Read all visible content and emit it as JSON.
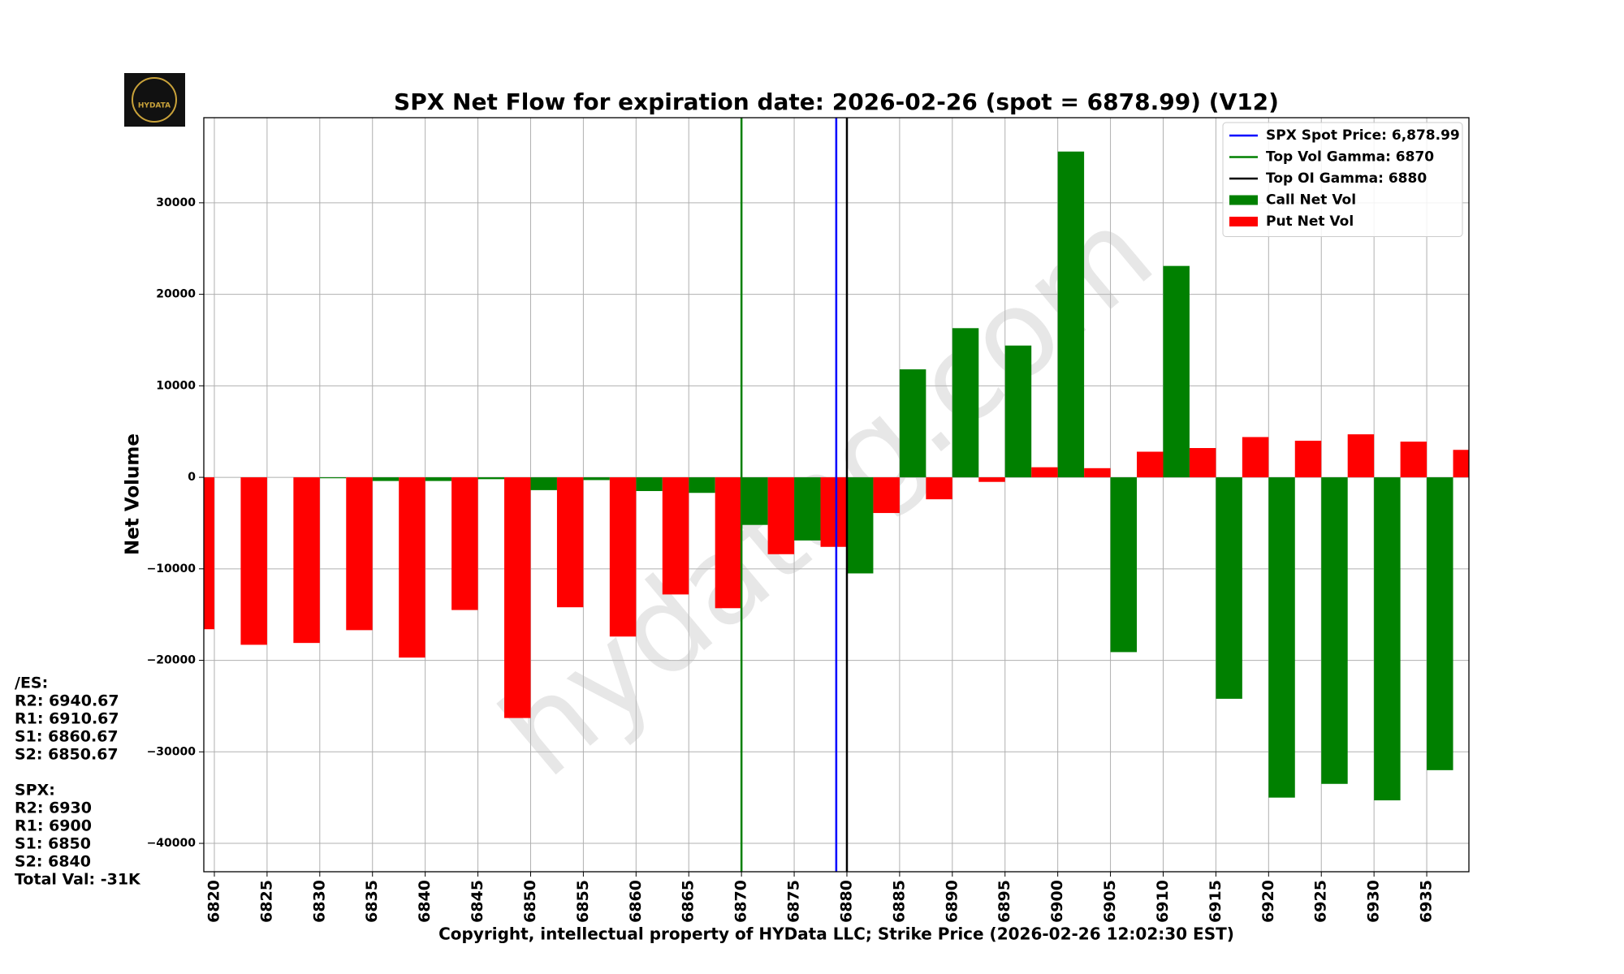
{
  "chart_data": {
    "type": "bar",
    "title": "SPX Net Flow for expiration date: 2026-02-26 (spot = 6878.99) (V12)",
    "xlabel": "Copyright, intellectual property of HYData LLC; Strike Price (2026-02-26 12:02:30 EST)",
    "ylabel": "Net Volume",
    "logo_text": "HYDATA",
    "watermark": "hydatag.com",
    "x": [
      6820,
      6825,
      6830,
      6835,
      6840,
      6845,
      6850,
      6855,
      6860,
      6865,
      6870,
      6875,
      6880,
      6885,
      6890,
      6895,
      6900,
      6905,
      6910,
      6915,
      6920,
      6925,
      6930,
      6935,
      6940
    ],
    "series": [
      {
        "name": "Call Net Vol",
        "color": "#008000",
        "offset": "right",
        "values": [
          0,
          0,
          -100,
          -400,
          -400,
          -200,
          -1400,
          -300,
          -1500,
          -1700,
          -5200,
          -6900,
          -10500,
          11800,
          16300,
          14400,
          35600,
          -19100,
          23100,
          -24200,
          -35000,
          -33500,
          -35300,
          -32000,
          null
        ]
      },
      {
        "name": "Put Net Vol",
        "color": "#ff0000",
        "offset": "left",
        "values": [
          -16600,
          -18300,
          -18100,
          -16700,
          -19700,
          -14500,
          -26300,
          -14200,
          -17400,
          -12800,
          -14300,
          -8400,
          -7600,
          -3900,
          -2400,
          -500,
          1100,
          1000,
          2800,
          3200,
          4400,
          4000,
          4700,
          3900,
          3000
        ]
      }
    ],
    "vlines": [
      {
        "name": "SPX Spot Price: 6,878.99",
        "value": 6878.99,
        "color": "#0000ff"
      },
      {
        "name": "Top Vol Gamma: 6870",
        "value": 6870,
        "color": "#008000"
      },
      {
        "name": "Top OI Gamma: 6880",
        "value": 6880,
        "color": "#000000"
      }
    ],
    "bar_width": 2.5,
    "xlim": [
      6819,
      6939
    ],
    "ylim": [
      -43100,
      39300
    ],
    "xticks": [
      6820,
      6825,
      6830,
      6835,
      6840,
      6845,
      6850,
      6855,
      6860,
      6865,
      6870,
      6875,
      6880,
      6885,
      6890,
      6895,
      6900,
      6905,
      6910,
      6915,
      6920,
      6925,
      6930,
      6935
    ],
    "yticks": [
      {
        "value": -40000,
        "label": "−40000"
      },
      {
        "value": -30000,
        "label": "−30000"
      },
      {
        "value": -20000,
        "label": "−20000"
      },
      {
        "value": -10000,
        "label": "−10000"
      },
      0,
      10000,
      20000,
      30000
    ],
    "grid": true,
    "legend": "upper right",
    "levels": [
      [
        "/ES:",
        "R2: 6940.67",
        "R1: 6910.67",
        "S1: 6860.67",
        "S2: 6850.67"
      ],
      [
        "SPX:",
        "R2: 6930",
        "R1: 6900",
        "S1: 6850",
        "S2: 6840",
        "Total Val: -31K"
      ]
    ]
  }
}
